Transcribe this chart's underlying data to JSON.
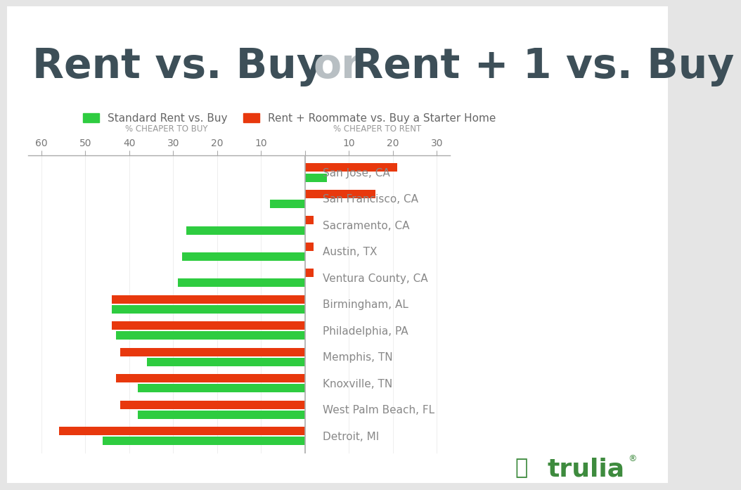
{
  "title_part1": "Rent vs. Buy ",
  "title_or": "or",
  "title_part2": " Rent + 1 vs. Buy",
  "legend_green": "Standard Rent vs. Buy",
  "legend_red": "Rent + Roommate vs. Buy a Starter Home",
  "xlabel_left": "% CHEAPER TO BUY",
  "xlabel_right": "% CHEAPER TO RENT",
  "cities": [
    "San Jose, CA",
    "San Francisco, CA",
    "Sacramento, CA",
    "Austin, TX",
    "Ventura County, CA",
    "Birmingham, AL",
    "Philadelphia, PA",
    "Memphis, TN",
    "Knoxville, TN",
    "West Palm Beach, FL",
    "Detroit, MI"
  ],
  "green_values": [
    5,
    -8,
    -27,
    -28,
    -29,
    -44,
    -43,
    -36,
    -38,
    -38,
    -46
  ],
  "red_values": [
    21,
    16,
    2,
    2,
    2,
    -44,
    -44,
    -42,
    -43,
    -42,
    -56
  ],
  "green_color": "#2ecc40",
  "red_color": "#e8380d",
  "background_color": "#ffffff",
  "outer_bg": "#e5e5e5",
  "title_dark": "#3d4f58",
  "title_or_color": "#b8bfc3",
  "axis_label_color": "#999999",
  "city_label_color": "#888888",
  "tick_color": "#777777",
  "xlim_left": -63,
  "xlim_right": 33,
  "xtick_vals": [
    -60,
    -50,
    -40,
    -30,
    -20,
    -10,
    0,
    10,
    20,
    30
  ],
  "xtick_labels": [
    "60",
    "50",
    "40",
    "30",
    "20",
    "10",
    "",
    "10",
    "20",
    "30"
  ]
}
